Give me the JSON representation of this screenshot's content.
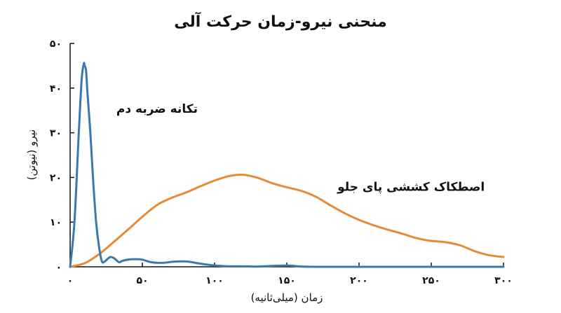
{
  "chart_data": {
    "type": "line",
    "title": "منحنی نیرو-زمان حرکت آلی",
    "xlabel": "زمان (میلی‌ثانیه)",
    "ylabel": "نیرو (نیوتن)",
    "xlim": [
      0,
      300
    ],
    "ylim": [
      0,
      50
    ],
    "xticks": [
      0,
      50,
      100,
      150,
      200,
      250,
      300
    ],
    "xtick_labels": [
      "۰",
      "۵۰",
      "۱۰۰",
      "۱۵۰",
      "۲۰۰",
      "۲۵۰",
      "۳۰۰"
    ],
    "yticks": [
      0,
      10,
      20,
      30,
      40,
      50
    ],
    "ytick_labels": [
      "۰",
      "۱۰",
      "۲۰",
      "۳۰",
      "۴۰",
      "۵۰"
    ],
    "grid": false,
    "series": [
      {
        "name": "تکانه ضربه دم",
        "color": "#3a78b0",
        "x": [
          0,
          3,
          6,
          8,
          9.5,
          10,
          11,
          12,
          14,
          16,
          18,
          20,
          22,
          24,
          26,
          28,
          30,
          32,
          34,
          36,
          40,
          45,
          50,
          55,
          60,
          65,
          70,
          75,
          80,
          85,
          90,
          100,
          110,
          120,
          130,
          140,
          150,
          155,
          160,
          170,
          200,
          250,
          300
        ],
        "y": [
          0,
          10,
          30,
          42,
          45.5,
          45,
          44,
          39,
          30,
          19,
          10,
          4.5,
          1.2,
          1.2,
          1.8,
          2.2,
          2.0,
          1.5,
          1.0,
          1.3,
          1.6,
          1.7,
          1.6,
          1.1,
          0.9,
          0.9,
          1.1,
          1.2,
          1.2,
          1.0,
          0.7,
          0.3,
          0.1,
          0.1,
          0.05,
          0.2,
          0.3,
          0.2,
          0.05,
          0,
          0,
          0,
          0
        ]
      },
      {
        "name": "اصطکاک کششی پای جلو",
        "color": "#e68a35",
        "x": [
          0,
          10,
          20,
          30,
          40,
          50,
          60,
          70,
          80,
          90,
          100,
          110,
          120,
          130,
          140,
          150,
          160,
          170,
          180,
          190,
          200,
          210,
          220,
          230,
          240,
          250,
          260,
          270,
          280,
          290,
          300
        ],
        "y": [
          0,
          0.8,
          2.8,
          5.5,
          8.3,
          11.2,
          13.8,
          15.4,
          16.6,
          18.0,
          19.3,
          20.3,
          20.6,
          19.9,
          18.7,
          17.8,
          17.0,
          15.7,
          13.8,
          12.0,
          10.5,
          9.3,
          8.3,
          7.4,
          6.4,
          5.8,
          5.5,
          4.8,
          3.5,
          2.6,
          2.2
        ]
      }
    ],
    "annotations": [
      {
        "text": "تکانه ضربه دم",
        "x": 32,
        "y": 34.5
      },
      {
        "text": "اصطکاک کششی پای جلو",
        "x": 185,
        "y": 17
      }
    ]
  }
}
